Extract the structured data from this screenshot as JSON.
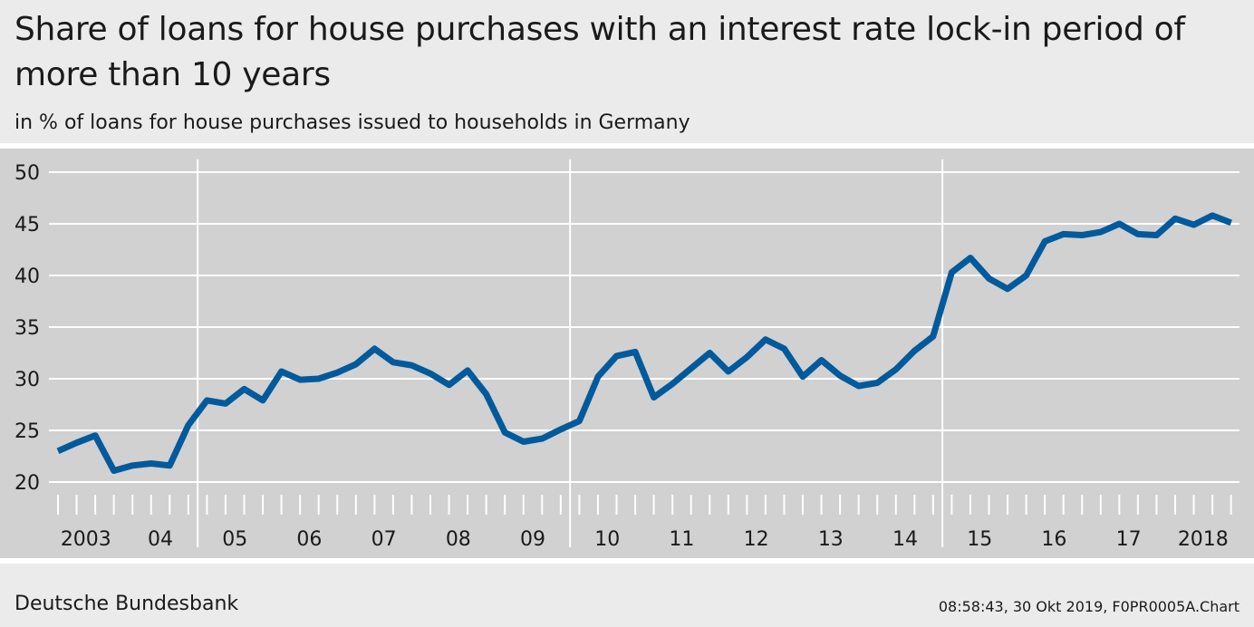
{
  "header": {
    "title": "Share of loans for house purchases with an interest rate lock-in period of more than 10 years",
    "subtitle": "in % of loans for house purchases issued to households in Germany"
  },
  "footer": {
    "source": "Deutsche Bundesbank",
    "stamp": "08:58:43, 30 Okt 2019, F0PR0005A.Chart"
  },
  "colors": {
    "line": "#005a9c",
    "plot_bg": "#d1d1d1",
    "page_bg": "#ebebeb",
    "grid": "#ffffff"
  },
  "chart_data": {
    "type": "line",
    "x_frequency": "quarterly",
    "x_start": "2003-Q1",
    "x_end": "2018-Q4",
    "ylim": [
      20,
      50
    ],
    "yticks": [
      20,
      25,
      30,
      35,
      40,
      45,
      50
    ],
    "ytick_labels": [
      "20",
      "25",
      "30",
      "35",
      "40",
      "45",
      "50"
    ],
    "year_labels": [
      "2003",
      "04",
      "05",
      "06",
      "07",
      "08",
      "09",
      "10",
      "11",
      "12",
      "13",
      "14",
      "15",
      "16",
      "17",
      "2018"
    ],
    "vertical_gridline_years": [
      "05",
      "10",
      "15"
    ],
    "grid": true,
    "series": [
      {
        "values": [
          23.0,
          23.8,
          24.5,
          21.1,
          21.6,
          21.8,
          21.6,
          25.5,
          27.9,
          27.6,
          29.0,
          27.9,
          30.7,
          29.9,
          30.0,
          30.6,
          31.4,
          32.9,
          31.6,
          31.3,
          30.5,
          29.4,
          30.8,
          28.5,
          24.8,
          23.9,
          24.2,
          25.1,
          25.9,
          30.2,
          32.2,
          32.6,
          28.2,
          29.5,
          31.0,
          32.5,
          30.7,
          32.1,
          33.8,
          32.9,
          30.2,
          31.8,
          30.3,
          29.3,
          29.6,
          30.9,
          32.7,
          34.1,
          40.3,
          41.7,
          39.7,
          38.7,
          40.0,
          43.3,
          44.0,
          43.9,
          44.2,
          45.0,
          44.0,
          43.9,
          45.5,
          44.9,
          45.8,
          45.1
        ]
      }
    ]
  }
}
